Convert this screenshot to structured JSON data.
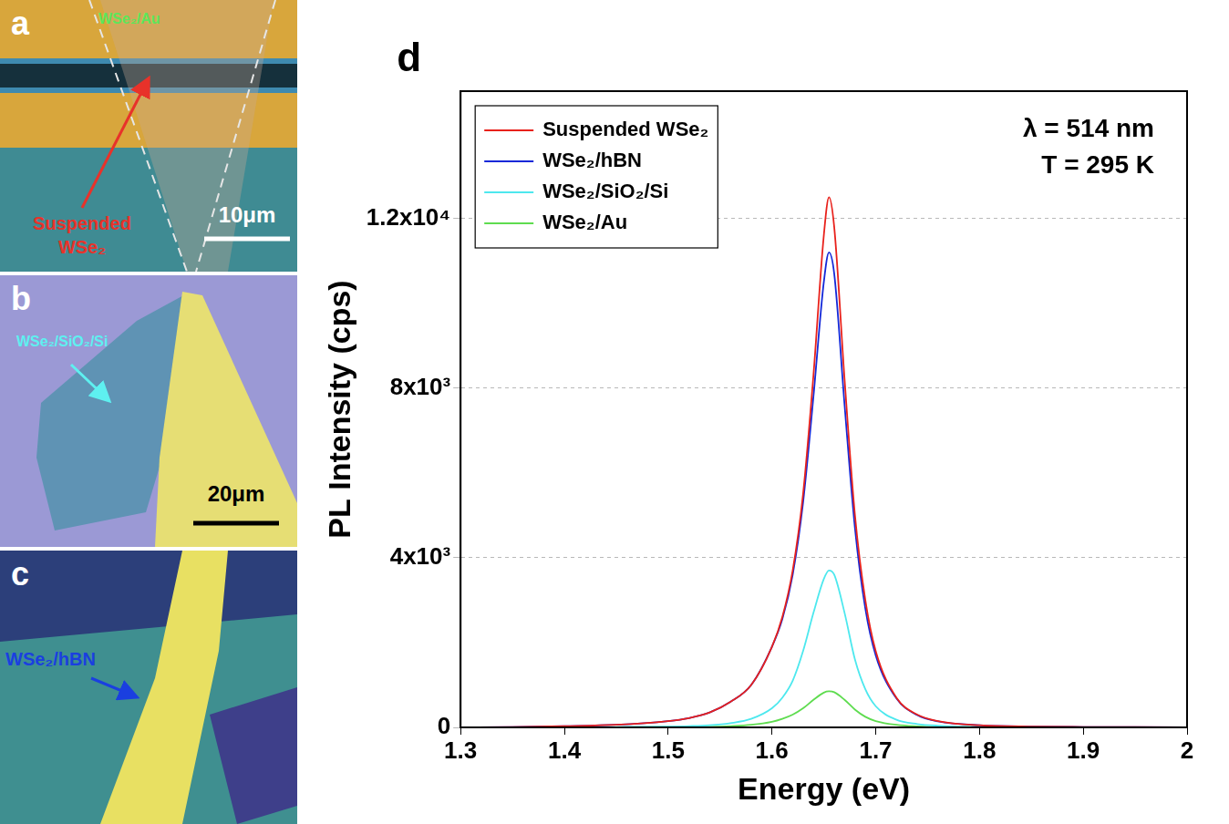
{
  "panels": [
    {
      "letter": "a",
      "labels": [
        {
          "text": "WSe₂/Au",
          "color": "#5ce65a"
        },
        {
          "text": "Suspended WSe₂",
          "color": "#e8322a"
        }
      ],
      "scale_bar": "10μm"
    },
    {
      "letter": "b",
      "labels": [
        {
          "text": "WSe₂/SiO₂/Si",
          "color": "#5ef0f0"
        }
      ],
      "scale_bar": "20μm"
    },
    {
      "letter": "c",
      "labels": [
        {
          "text": "WSe₂/hBN",
          "color": "#1a3fe0"
        }
      ]
    }
  ],
  "chart_data": {
    "type": "line",
    "panel_letter": "d",
    "x_label": "Energy (eV)",
    "y_label": "PL Intensity (cps)",
    "annotations": [
      "λ = 514 nm",
      "T = 295 K"
    ],
    "x": [
      1.3,
      1.35,
      1.4,
      1.45,
      1.5,
      1.52,
      1.54,
      1.56,
      1.58,
      1.6,
      1.61,
      1.62,
      1.63,
      1.64,
      1.65,
      1.655,
      1.66,
      1.67,
      1.68,
      1.69,
      1.7,
      1.72,
      1.74,
      1.76,
      1.8,
      1.85,
      1.9,
      1.95,
      2.0
    ],
    "series": [
      {
        "name": "Suspended WSe₂",
        "color": "#e8211b",
        "values": [
          0,
          10,
          30,
          60,
          150,
          220,
          350,
          600,
          1000,
          1900,
          2600,
          3700,
          5500,
          8300,
          11600,
          12500,
          11800,
          8200,
          5000,
          3000,
          1800,
          700,
          300,
          150,
          50,
          20,
          10,
          5,
          0
        ]
      },
      {
        "name": "WSe₂/hBN",
        "color": "#1428d8",
        "values": [
          0,
          10,
          30,
          60,
          150,
          220,
          350,
          600,
          1000,
          1900,
          2550,
          3600,
          5300,
          7800,
          10500,
          11200,
          10700,
          7600,
          4700,
          2800,
          1700,
          680,
          290,
          140,
          50,
          20,
          10,
          5,
          0
        ]
      },
      {
        "name": "WSe₂/SiO₂/Si",
        "color": "#4de8ee",
        "values": [
          0,
          0,
          5,
          10,
          20,
          30,
          50,
          100,
          200,
          450,
          700,
          1100,
          1800,
          2700,
          3500,
          3700,
          3600,
          2700,
          1600,
          900,
          500,
          180,
          80,
          40,
          10,
          5,
          0,
          0,
          0
        ]
      },
      {
        "name": "WSe₂/Au",
        "color": "#5edc4f",
        "values": [
          0,
          0,
          0,
          0,
          5,
          10,
          15,
          30,
          60,
          130,
          200,
          300,
          450,
          650,
          820,
          850,
          830,
          650,
          420,
          250,
          150,
          60,
          25,
          10,
          5,
          0,
          0,
          0,
          0
        ]
      }
    ],
    "xlim": [
      1.3,
      2
    ],
    "xticks": [
      1.3,
      1.4,
      1.5,
      1.6,
      1.7,
      1.8,
      1.9,
      2
    ],
    "ylim": [
      0,
      15000
    ],
    "yticks": [
      0,
      {
        "value": 4000,
        "label": "4x10³"
      },
      {
        "value": 8000,
        "label": "8x10³"
      },
      {
        "value": 12000,
        "label": "1.2x10⁴"
      }
    ],
    "grid": true,
    "legend": "upper left"
  }
}
